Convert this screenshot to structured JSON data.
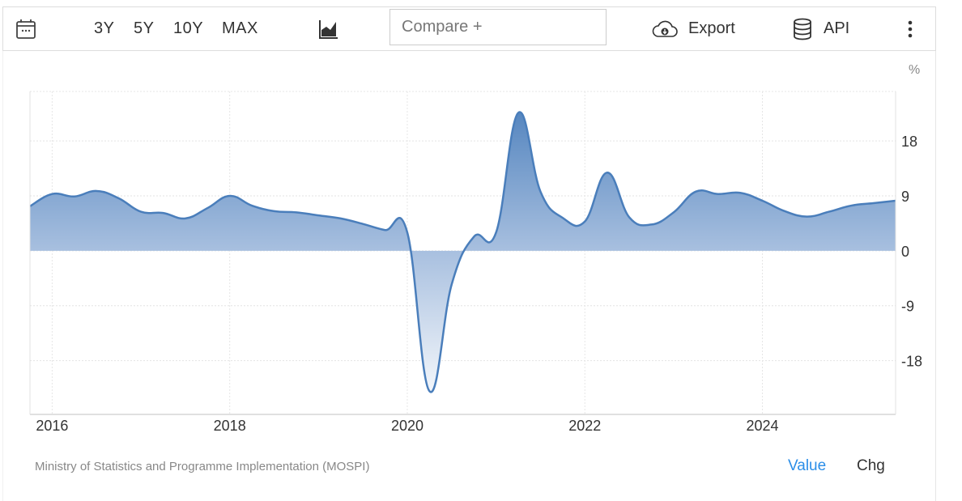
{
  "toolbar": {
    "calendar_icon": "calendar-icon",
    "ranges": [
      "3Y",
      "5Y",
      "10Y",
      "MAX"
    ],
    "chart_type_icon": "area-chart-icon",
    "compare_placeholder": "Compare +",
    "export_label": "Export",
    "export_icon": "cloud-download-icon",
    "api_label": "API",
    "api_icon": "database-icon",
    "more_icon": "more-vertical-icon"
  },
  "footer": {
    "source": "Ministry of Statistics and Programme Implementation (MOSPI)",
    "value_label": "Value",
    "chg_label": "Chg",
    "active_color": "#2b8ee8"
  },
  "chart_data": {
    "type": "area",
    "unit": "%",
    "line_color": "#4a7ebb",
    "fill_color": "#4a7ebb",
    "x_axis": {
      "ticks": [
        "2016",
        "2018",
        "2020",
        "2022",
        "2024"
      ],
      "range": [
        "2015 Q4",
        "2025 Q3"
      ]
    },
    "y_axis": {
      "ticks": [
        18,
        9,
        0,
        -9,
        -18
      ],
      "labels": [
        "18",
        "9",
        "0",
        "-9",
        "-18"
      ],
      "ylim": [
        -26.8,
        26.1
      ],
      "position": "right"
    },
    "grid": true,
    "x": [
      "2015 Q4",
      "2016 Q1",
      "2016 Q2",
      "2016 Q3",
      "2016 Q4",
      "2017 Q1",
      "2017 Q2",
      "2017 Q3",
      "2017 Q4",
      "2018 Q1",
      "2018 Q2",
      "2018 Q3",
      "2018 Q4",
      "2019 Q1",
      "2019 Q2",
      "2019 Q3",
      "2019 Q4",
      "2020 Q1",
      "2020 Q2",
      "2020 Q3",
      "2020 Q4",
      "2021 Q1",
      "2021 Q2",
      "2021 Q3",
      "2021 Q4",
      "2022 Q1",
      "2022 Q2",
      "2022 Q3",
      "2022 Q4",
      "2023 Q1",
      "2023 Q2",
      "2023 Q3",
      "2023 Q4",
      "2024 Q1",
      "2024 Q2",
      "2024 Q3",
      "2024 Q4",
      "2025 Q1",
      "2025 Q2",
      "2025 Q3"
    ],
    "values": [
      7.3,
      9.3,
      8.9,
      9.8,
      8.6,
      6.4,
      6.2,
      5.3,
      7.0,
      9.0,
      7.4,
      6.5,
      6.3,
      5.8,
      5.3,
      4.4,
      3.4,
      3.0,
      -23.0,
      -5.5,
      2.3,
      3.0,
      22.6,
      9.7,
      5.4,
      4.8,
      12.8,
      5.5,
      4.3,
      6.3,
      9.7,
      9.3,
      9.5,
      8.2,
      6.5,
      5.6,
      6.4,
      7.4,
      7.8,
      8.2
    ]
  }
}
